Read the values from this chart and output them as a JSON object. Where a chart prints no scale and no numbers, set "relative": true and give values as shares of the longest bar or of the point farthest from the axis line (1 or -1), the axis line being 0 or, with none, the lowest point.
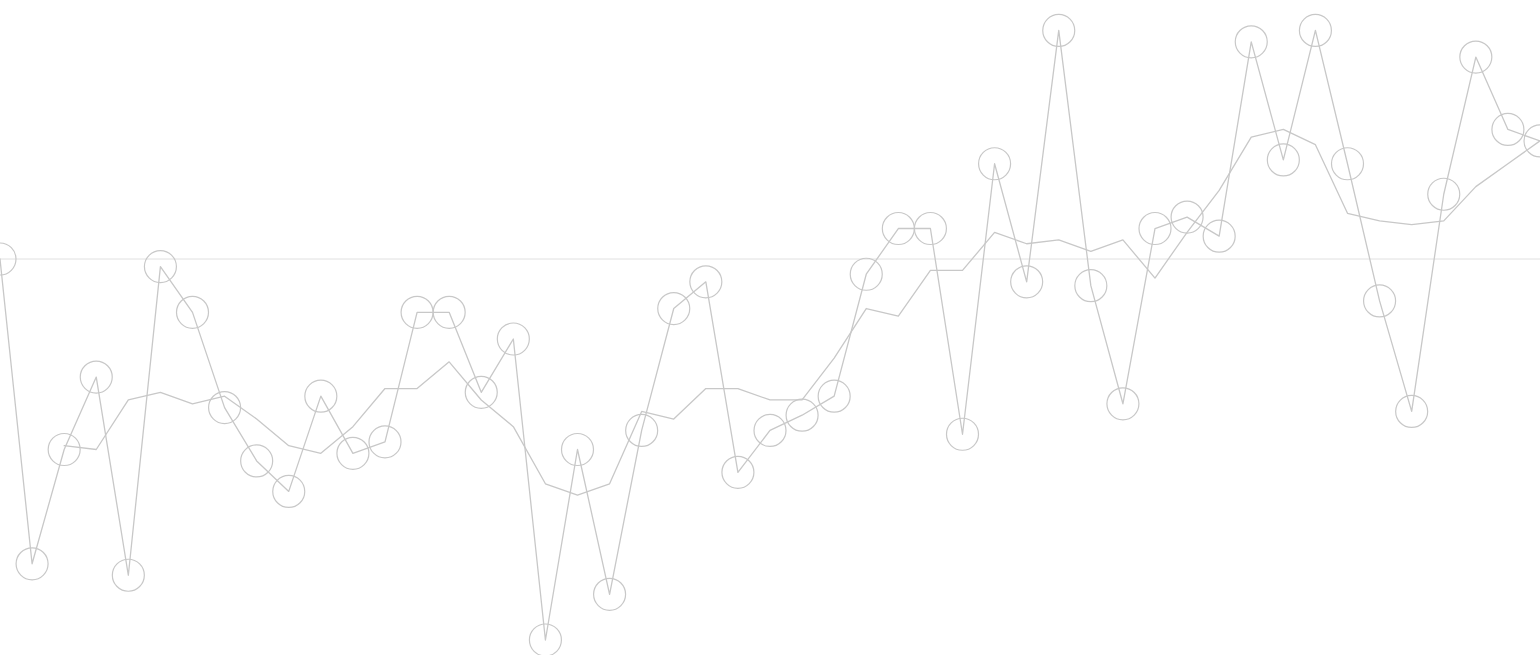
{
  "chart_data": {
    "type": "line",
    "relative": true,
    "categories": [
      null,
      null,
      null,
      null,
      null,
      null,
      null,
      null,
      null,
      null,
      null,
      null,
      null,
      null,
      null,
      null,
      null,
      null,
      null,
      null,
      null,
      null,
      null,
      null,
      null,
      null,
      null,
      null,
      null,
      null,
      null,
      null,
      null,
      null,
      null,
      null,
      null,
      null,
      null,
      null,
      null,
      null,
      null,
      null,
      null,
      null,
      null,
      null,
      null
    ],
    "series": [
      {
        "color": "#c8c8c8",
        "marker": "circle",
        "values": [
          0,
          -0.8,
          -0.5,
          -0.31,
          -0.83,
          -0.02,
          -0.14,
          -0.39,
          -0.53,
          -0.61,
          -0.36,
          -0.51,
          -0.48,
          -0.14,
          -0.14,
          -0.35,
          -0.21,
          -1,
          -0.5,
          -0.88,
          -0.45,
          -0.13,
          -0.06,
          -0.56,
          -0.45,
          -0.41,
          -0.36,
          -0.04,
          0.08,
          0.08,
          -0.46,
          0.25,
          -0.06,
          0.6,
          -0.07,
          -0.38,
          0.08,
          0.11,
          0.06,
          0.57,
          0.26,
          0.6,
          0.25,
          -0.11,
          -0.4,
          0.17,
          0.53,
          0.34,
          0.31
        ]
      },
      {
        "color": "#c8c8c8",
        "marker": "none",
        "values": [
          null,
          null,
          -0.49,
          -0.5,
          -0.37,
          -0.35,
          -0.38,
          -0.36,
          -0.42,
          -0.49,
          -0.51,
          -0.44,
          -0.34,
          -0.34,
          -0.27,
          -0.37,
          -0.44,
          -0.59,
          -0.62,
          -0.59,
          -0.4,
          -0.42,
          -0.34,
          -0.34,
          -0.37,
          -0.37,
          -0.26,
          -0.13,
          -0.15,
          -0.03,
          -0.03,
          0.07,
          0.04,
          0.05,
          0.02,
          0.05,
          -0.05,
          0.07,
          0.18,
          0.32,
          0.34,
          0.3,
          0.12,
          0.1,
          0.09,
          0.1,
          0.19,
          0.25,
          0.31
        ]
      }
    ]
  }
}
